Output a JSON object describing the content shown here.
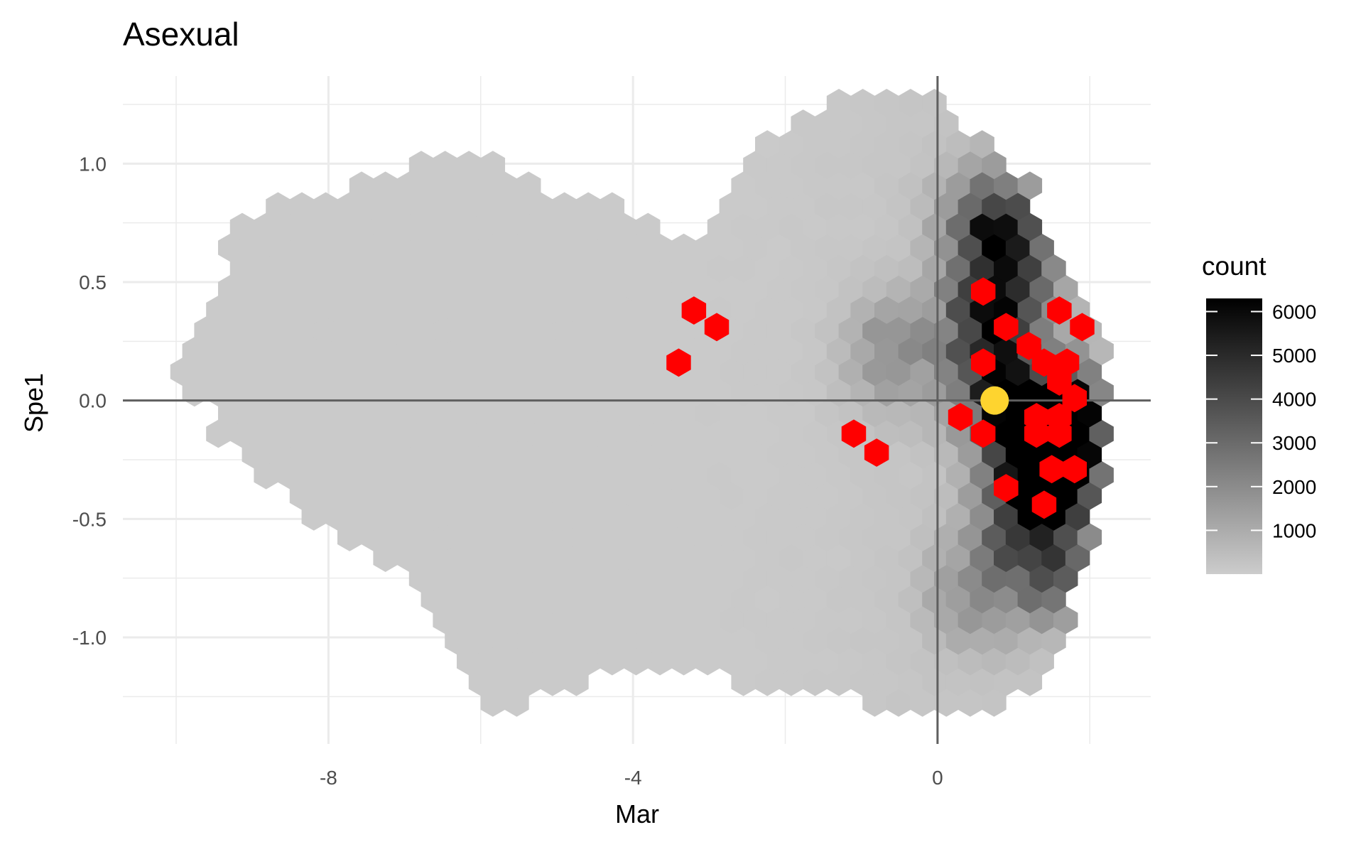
{
  "chart_data": {
    "type": "heatmap",
    "subtype": "hexbin",
    "title": "Asexual",
    "xlabel": "Mar",
    "ylabel": "Spe1",
    "xlim": [
      -10.7,
      2.8
    ],
    "ylim": [
      -1.45,
      1.37
    ],
    "x_ticks": [
      -8,
      -4,
      0
    ],
    "y_ticks": [
      1.0,
      0.5,
      0.0,
      -0.5,
      -1.0
    ],
    "x_tick_labels": [
      "-8",
      "-4",
      "0"
    ],
    "y_tick_labels": [
      "1.0",
      "0.5",
      "0.0",
      "-0.5",
      "-1.0"
    ],
    "grid": true,
    "reference_lines": {
      "x": 0,
      "y": 0
    },
    "legend": {
      "title": "count",
      "position": "right",
      "min": 0,
      "max": 6300,
      "breaks": [
        1000,
        2000,
        3000,
        4000,
        5000,
        6000
      ],
      "labels": [
        "1000",
        "2000",
        "3000",
        "4000",
        "5000",
        "6000"
      ],
      "low_color": "#cccccc",
      "high_color": "#000000"
    },
    "density_outline": {
      "bottom": [
        [
          -10.2,
          0.14
        ],
        [
          -9.6,
          -0.05
        ],
        [
          -9.4,
          -0.2
        ],
        [
          -8.6,
          -0.38
        ],
        [
          -8.0,
          -0.55
        ],
        [
          -7.2,
          -0.72
        ],
        [
          -6.6,
          -0.88
        ],
        [
          -6.4,
          -1.05
        ],
        [
          -6.0,
          -1.25
        ],
        [
          -5.7,
          -1.33
        ],
        [
          -5.0,
          -1.22
        ],
        [
          -4.0,
          -1.15
        ],
        [
          -3.0,
          -1.18
        ],
        [
          -2.0,
          -1.22
        ],
        [
          -1.4,
          -1.25
        ],
        [
          -0.8,
          -1.28
        ],
        [
          0.0,
          -1.33
        ],
        [
          0.5,
          -1.33
        ],
        [
          1.2,
          -1.2
        ],
        [
          1.7,
          -1.0
        ],
        [
          2.0,
          -0.6
        ],
        [
          2.2,
          -0.3
        ],
        [
          2.3,
          0.0
        ]
      ],
      "top": [
        [
          -10.2,
          0.14
        ],
        [
          -9.6,
          0.4
        ],
        [
          -9.3,
          0.7
        ],
        [
          -8.8,
          0.85
        ],
        [
          -7.6,
          0.92
        ],
        [
          -6.2,
          1.05
        ],
        [
          -5.0,
          0.88
        ],
        [
          -4.0,
          0.82
        ],
        [
          -3.3,
          0.65
        ],
        [
          -2.8,
          0.82
        ],
        [
          -2.3,
          1.12
        ],
        [
          -1.6,
          1.25
        ],
        [
          -0.8,
          1.3
        ],
        [
          0.0,
          1.28
        ],
        [
          0.6,
          1.1
        ],
        [
          1.2,
          0.92
        ],
        [
          1.6,
          0.65
        ],
        [
          2.0,
          0.42
        ],
        [
          2.3,
          0.2
        ],
        [
          2.3,
          0.0
        ]
      ]
    },
    "density_ridge": [
      {
        "x": 1.5,
        "y": -0.22,
        "count": 6300
      },
      {
        "x": 1.6,
        "y": -0.08,
        "count": 6000
      },
      {
        "x": 0.7,
        "y": 0.75,
        "count": 4200
      },
      {
        "x": 1.0,
        "y": 0.5,
        "count": 4000
      },
      {
        "x": 0.6,
        "y": 0.3,
        "count": 3500
      },
      {
        "x": 0.8,
        "y": 0.0,
        "count": 3600
      },
      {
        "x": 1.2,
        "y": -0.45,
        "count": 4500
      },
      {
        "x": 1.5,
        "y": -0.7,
        "count": 3000
      },
      {
        "x": 0.5,
        "y": -0.8,
        "count": 1800
      },
      {
        "x": -0.6,
        "y": 0.2,
        "count": 1800
      }
    ],
    "highlighted_points": [
      [
        -3.2,
        0.38
      ],
      [
        -2.9,
        0.31
      ],
      [
        -3.4,
        0.16
      ],
      [
        -1.1,
        -0.14
      ],
      [
        -0.8,
        -0.22
      ],
      [
        0.6,
        0.46
      ],
      [
        0.6,
        0.16
      ],
      [
        0.3,
        -0.07
      ],
      [
        0.6,
        -0.14
      ],
      [
        0.9,
        0.31
      ],
      [
        1.2,
        0.23
      ],
      [
        1.4,
        0.16
      ],
      [
        1.6,
        0.08
      ],
      [
        1.7,
        0.16
      ],
      [
        1.9,
        0.31
      ],
      [
        1.6,
        0.38
      ],
      [
        1.3,
        -0.07
      ],
      [
        1.6,
        -0.07
      ],
      [
        1.3,
        -0.14
      ],
      [
        1.6,
        -0.14
      ],
      [
        1.8,
        0.01
      ],
      [
        1.5,
        -0.29
      ],
      [
        1.8,
        -0.29
      ],
      [
        0.9,
        -0.37
      ],
      [
        1.4,
        -0.44
      ]
    ],
    "highlight_point": {
      "x": 0.75,
      "y": 0.0
    },
    "colors": {
      "highlighted_points": "#ff0000",
      "highlight_point": "#fed42f",
      "reference_lines": "#5f5f5f",
      "gridlines": "#ebebeb"
    }
  }
}
